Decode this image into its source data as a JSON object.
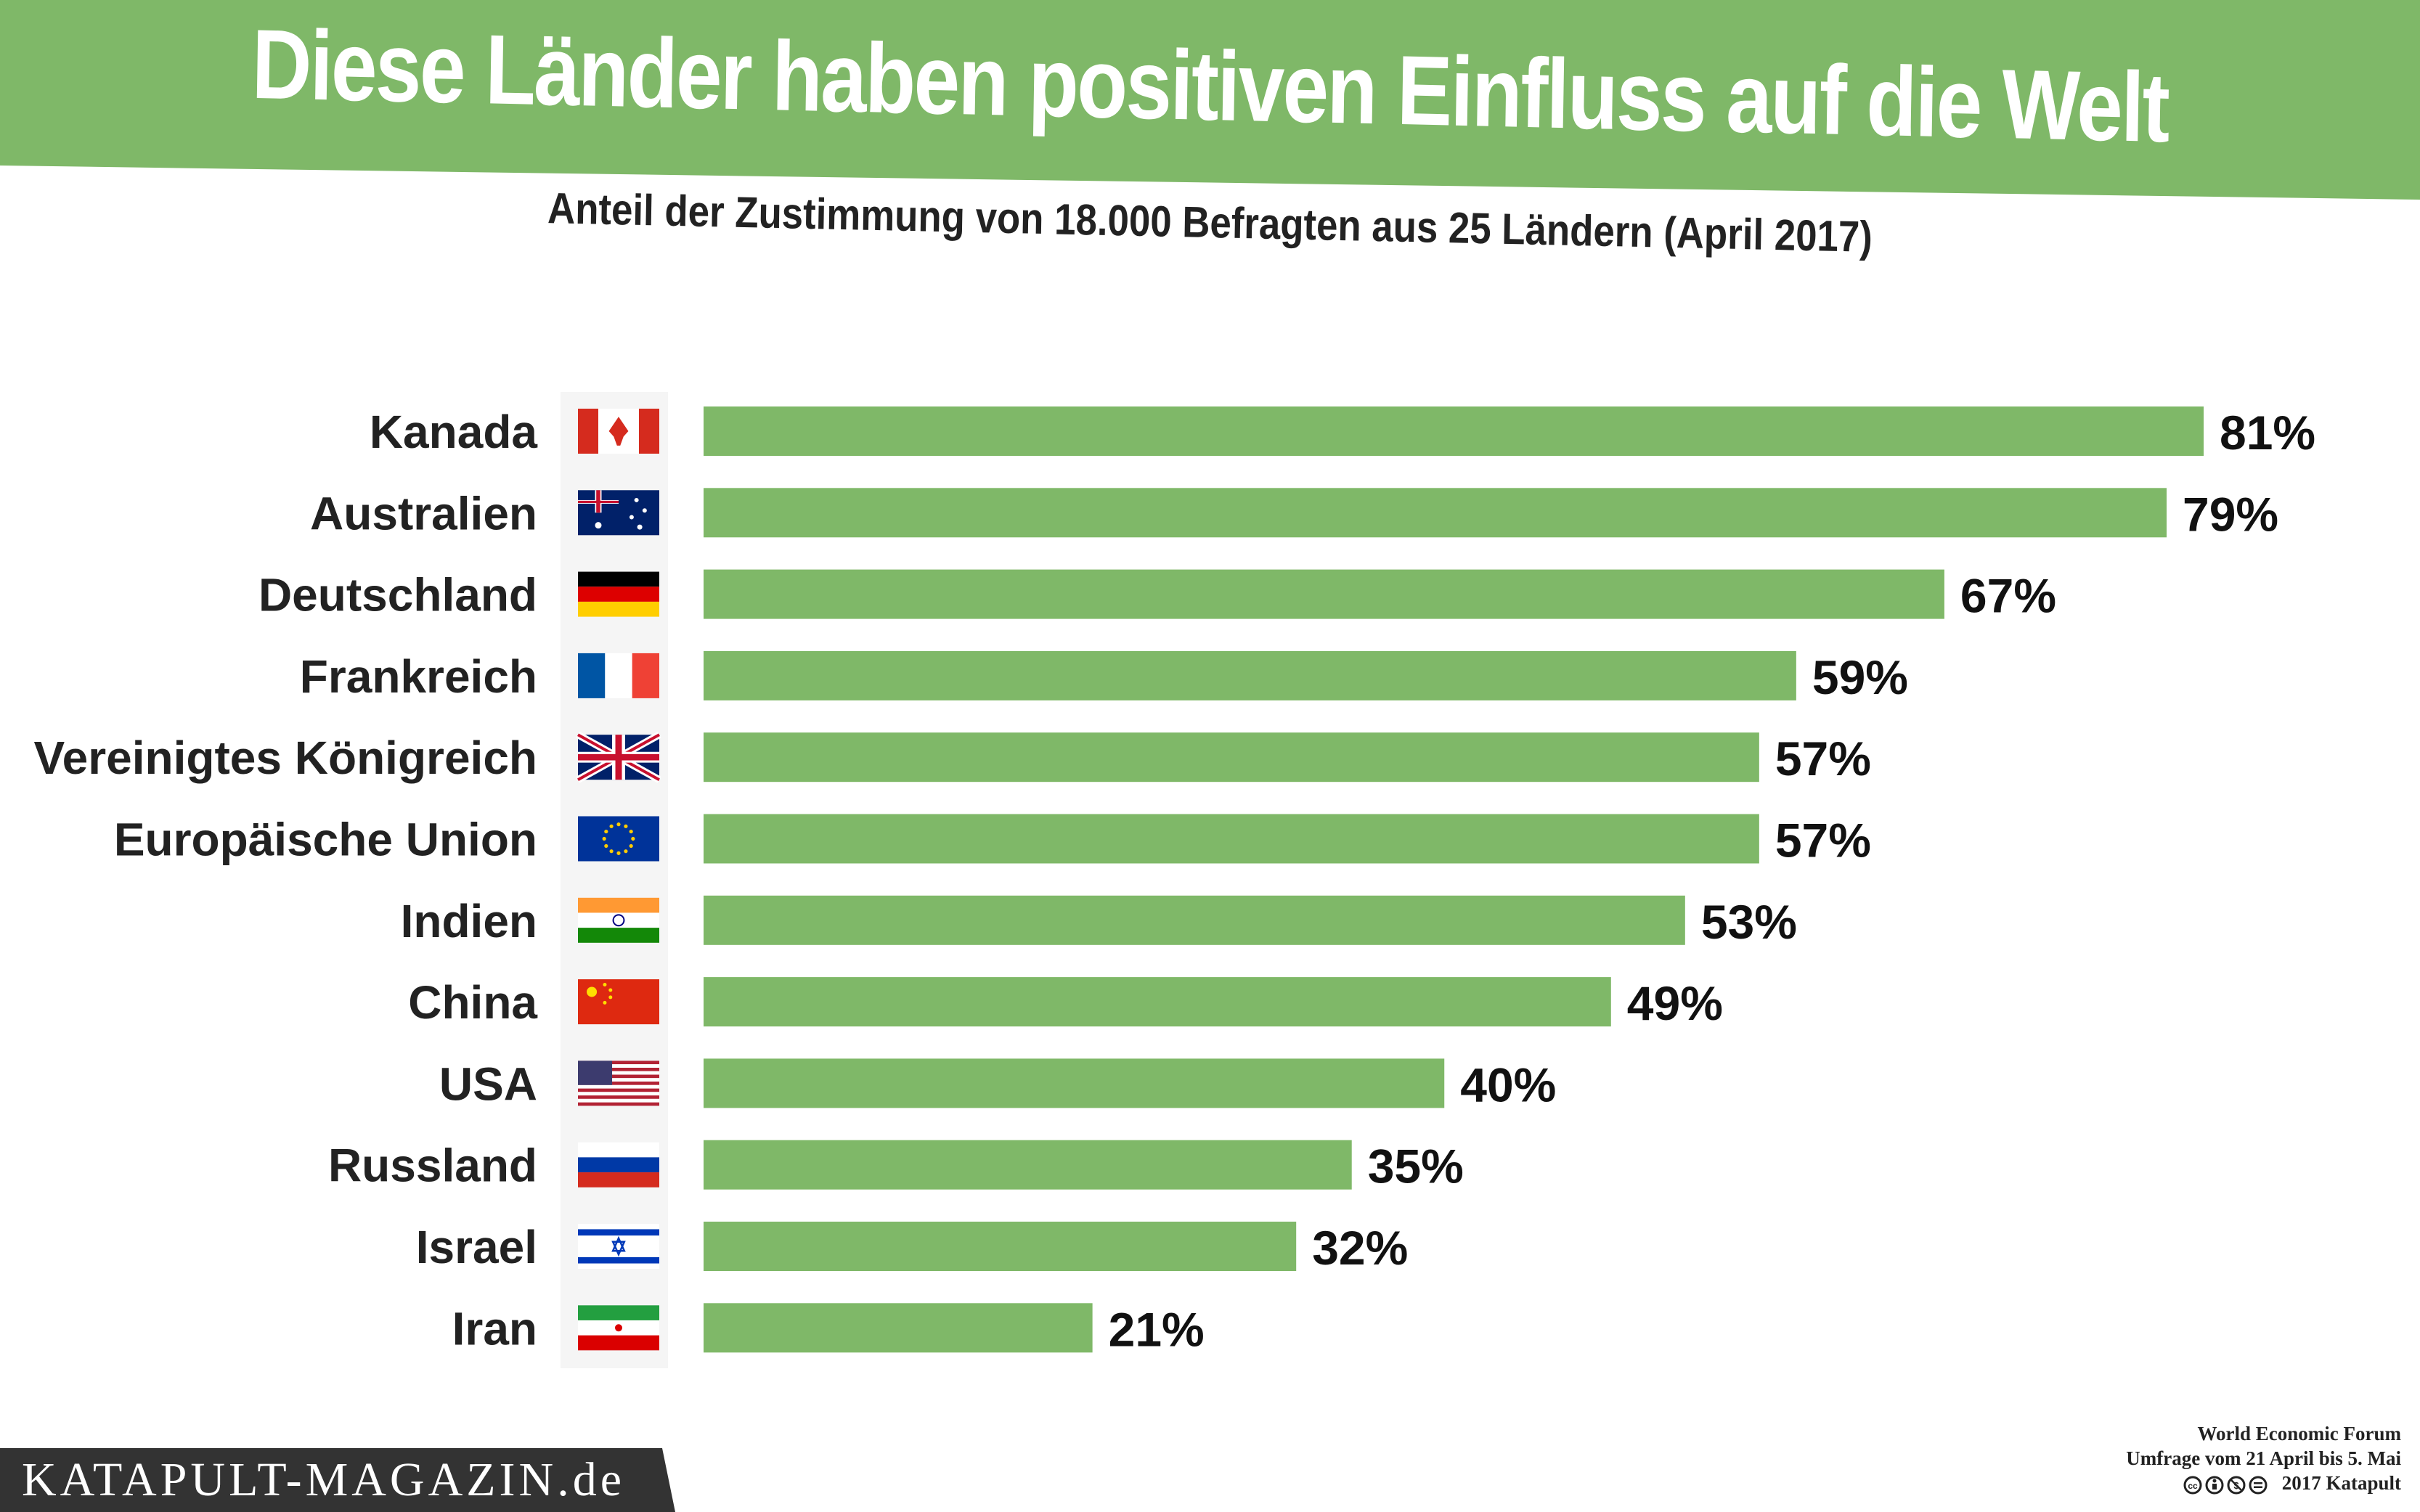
{
  "header": {
    "title": "Diese Länder haben positiven Einfluss auf die Welt",
    "subtitle": "Anteil der Zustimmung von 18.000 Befragten aus 25 Ländern (April 2017)"
  },
  "colors": {
    "accent": "#7fb868",
    "bar": "#7fb868",
    "text": "#222222",
    "brand_bg": "#333333"
  },
  "chart_data": {
    "type": "bar",
    "orientation": "horizontal",
    "title": "Diese Länder haben positiven Einfluss auf die Welt",
    "subtitle": "Anteil der Zustimmung von 18.000 Befragten aus 25 Ländern (April 2017)",
    "xlabel": "",
    "ylabel": "",
    "xlim": [
      0,
      100
    ],
    "unit": "%",
    "grid": false,
    "categories": [
      "Kanada",
      "Australien",
      "Deutschland",
      "Frankreich",
      "Vereinigtes Königreich",
      "Europäische Union",
      "Indien",
      "China",
      "USA",
      "Russland",
      "Israel",
      "Iran"
    ],
    "values": [
      81,
      79,
      67,
      59,
      57,
      57,
      53,
      49,
      40,
      35,
      32,
      21
    ],
    "value_labels": [
      "81%",
      "79%",
      "67%",
      "59%",
      "57%",
      "57%",
      "53%",
      "49%",
      "40%",
      "35%",
      "32%",
      "21%"
    ],
    "flags": [
      "canada-flag",
      "australia-flag",
      "germany-flag",
      "france-flag",
      "uk-flag",
      "eu-flag",
      "india-flag",
      "china-flag",
      "usa-flag",
      "russia-flag",
      "israel-flag",
      "iran-flag"
    ]
  },
  "footer": {
    "source_line1": "World Economic Forum",
    "source_line2": "Umfrage vom 21 April bis 5. Mai",
    "copyright": "2017 Katapult",
    "brand": "KATAPULT-MAGAZIN.de"
  }
}
